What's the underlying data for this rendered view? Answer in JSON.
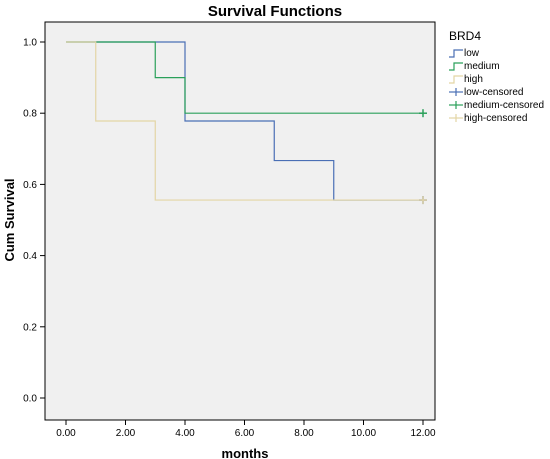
{
  "chart_data": {
    "type": "line",
    "title": "Survival Functions",
    "xlabel": "months",
    "ylabel": "Cum Survival",
    "xlim": [
      0,
      12
    ],
    "ylim": [
      0,
      1
    ],
    "x_ticks": [
      "0.00",
      "2.00",
      "4.00",
      "6.00",
      "8.00",
      "10.00",
      "12.00"
    ],
    "y_ticks": [
      "0.0",
      "0.2",
      "0.4",
      "0.6",
      "0.8",
      "1.0"
    ],
    "grid": false,
    "legend_title": "BRD4",
    "legend_position": "right",
    "series": [
      {
        "name": "low",
        "color": "#4a6fb5",
        "step": true,
        "x": [
          0,
          4,
          7,
          9,
          12
        ],
        "y": [
          1.0,
          0.778,
          0.667,
          0.556,
          0.556
        ]
      },
      {
        "name": "medium",
        "color": "#2aa05a",
        "step": true,
        "x": [
          0,
          3,
          4,
          12
        ],
        "y": [
          1.0,
          0.9,
          0.8,
          0.8
        ]
      },
      {
        "name": "high",
        "color": "#e3d5a5",
        "step": true,
        "x": [
          0,
          1,
          3,
          12
        ],
        "y": [
          1.0,
          0.778,
          0.556,
          0.556
        ]
      }
    ],
    "censored": [
      {
        "name": "low-censored",
        "color": "#4a6fb5",
        "x": [
          12
        ],
        "y": [
          0.556
        ]
      },
      {
        "name": "medium-censored",
        "color": "#2aa05a",
        "x": [
          12
        ],
        "y": [
          0.8
        ]
      },
      {
        "name": "high-censored",
        "color": "#e3d5a5",
        "x": [
          12
        ],
        "y": [
          0.556
        ]
      }
    ]
  }
}
